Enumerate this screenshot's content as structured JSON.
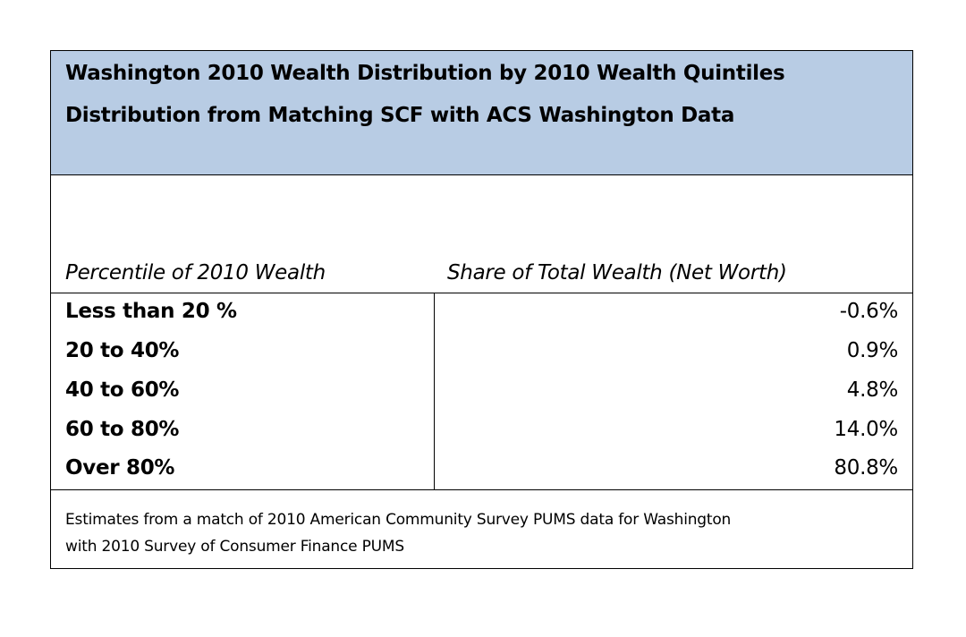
{
  "header": {
    "title_line_1": "Washington 2010 Wealth Distribution by 2010 Wealth Quintiles",
    "title_line_2": "Distribution from Matching SCF with ACS Washington Data",
    "background_color": "#b8cce4"
  },
  "columns": {
    "left": "Percentile of 2010 Wealth",
    "right": "Share of Total Wealth (Net Worth)"
  },
  "rows": [
    {
      "label": "Less than 20 %",
      "value": "-0.6%"
    },
    {
      "label": "20 to 40%",
      "value": "0.9%"
    },
    {
      "label": "40 to 60%",
      "value": "4.8%"
    },
    {
      "label": "60 to 80%",
      "value": "14.0%"
    },
    {
      "label": "Over 80%",
      "value": "80.8%"
    }
  ],
  "footnote": {
    "line_1": "Estimates from a match of 2010 American Community Survey PUMS data for Washington",
    "line_2": "with 2010 Survey of Consumer Finance PUMS"
  }
}
